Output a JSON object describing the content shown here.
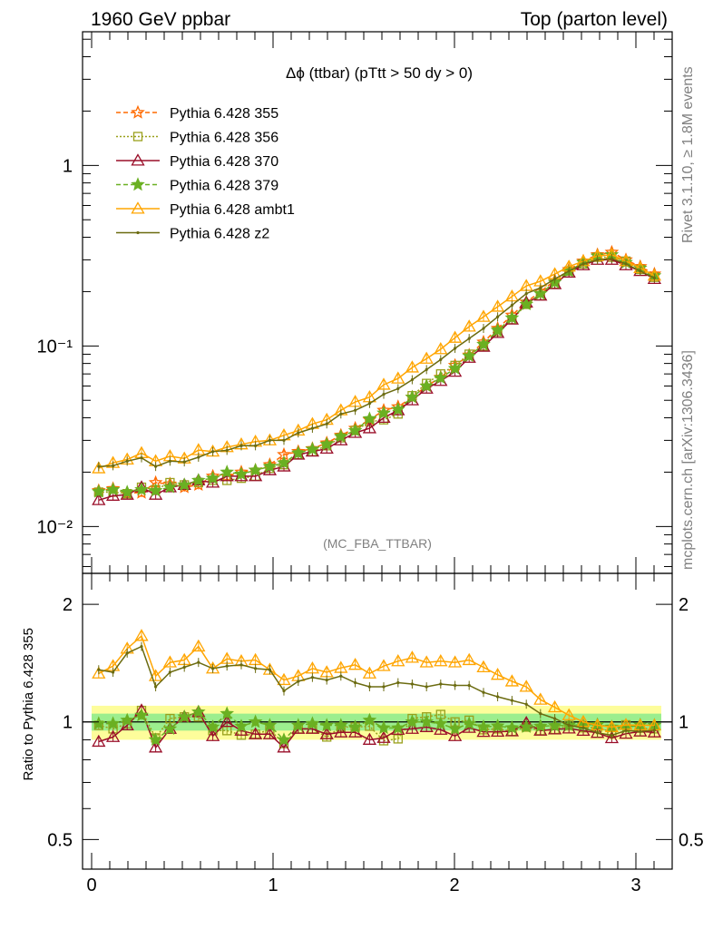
{
  "header": {
    "left": "1960 GeV ppbar",
    "right": "Top (parton level)",
    "side_top": "Rivet 3.1.10, ≥ 1.8M events",
    "side_bottom": "mcplots.cern.ch [arXiv:1306.3436]"
  },
  "chart_data": [
    {
      "type": "line",
      "title": "Δϕ (ttbar) (pTtt > 50 dy > 0)",
      "watermark": "(MC_FBA_TTBAR)",
      "yscale": "log",
      "xlim": [
        -0.05,
        3.2
      ],
      "ylim": [
        0.0055,
        5.5
      ],
      "y_tick_labels": [
        "10⁻²",
        "10⁻¹",
        "1"
      ],
      "legend_position": "top-left",
      "x": [
        0.039,
        0.118,
        0.196,
        0.275,
        0.353,
        0.432,
        0.511,
        0.589,
        0.668,
        0.746,
        0.825,
        0.903,
        0.982,
        1.06,
        1.139,
        1.217,
        1.296,
        1.374,
        1.453,
        1.532,
        1.61,
        1.689,
        1.767,
        1.846,
        1.924,
        2.003,
        2.081,
        2.16,
        2.238,
        2.317,
        2.396,
        2.474,
        2.553,
        2.631,
        2.71,
        2.788,
        2.867,
        2.945,
        3.024,
        3.102
      ],
      "series": [
        {
          "name": "Pythia 6.428 355",
          "color": "#ff6a00",
          "marker": "star-open",
          "dash": "dashed",
          "values": [
            0.0158,
            0.0162,
            0.0153,
            0.0154,
            0.0175,
            0.0172,
            0.0165,
            0.017,
            0.019,
            0.019,
            0.02,
            0.0205,
            0.022,
            0.025,
            0.026,
            0.027,
            0.029,
            0.032,
            0.035,
            0.039,
            0.044,
            0.046,
            0.052,
            0.06,
            0.067,
            0.078,
            0.089,
            0.105,
            0.125,
            0.148,
            0.175,
            0.2,
            0.23,
            0.265,
            0.295,
            0.32,
            0.33,
            0.3,
            0.275,
            0.25
          ]
        },
        {
          "name": "Pythia 6.428 356",
          "color": "#9aa01c",
          "marker": "square-open",
          "dash": "dotted",
          "values": [
            0.0155,
            0.0155,
            0.0152,
            0.0165,
            0.016,
            0.0175,
            0.017,
            0.0175,
            0.018,
            0.018,
            0.0185,
            0.019,
            0.021,
            0.022,
            0.025,
            0.026,
            0.028,
            0.031,
            0.034,
            0.038,
            0.039,
            0.042,
            0.053,
            0.062,
            0.07,
            0.078,
            0.09,
            0.1,
            0.12,
            0.14,
            0.17,
            0.19,
            0.22,
            0.26,
            0.285,
            0.31,
            0.31,
            0.295,
            0.265,
            0.24
          ]
        },
        {
          "name": "Pythia 6.428 370",
          "color": "#9a0e29",
          "marker": "triangle-open",
          "dash": "solid",
          "values": [
            0.014,
            0.0148,
            0.015,
            0.0165,
            0.015,
            0.0165,
            0.017,
            0.018,
            0.0175,
            0.019,
            0.019,
            0.019,
            0.0205,
            0.0215,
            0.025,
            0.026,
            0.027,
            0.03,
            0.033,
            0.035,
            0.04,
            0.044,
            0.05,
            0.058,
            0.064,
            0.072,
            0.086,
            0.099,
            0.118,
            0.14,
            0.174,
            0.19,
            0.22,
            0.255,
            0.28,
            0.3,
            0.3,
            0.28,
            0.26,
            0.235
          ]
        },
        {
          "name": "Pythia 6.428 379",
          "color": "#6ab022",
          "marker": "star-filled",
          "dash": "dashed",
          "values": [
            0.0156,
            0.016,
            0.0155,
            0.016,
            0.0158,
            0.0165,
            0.017,
            0.018,
            0.0185,
            0.02,
            0.0195,
            0.0205,
            0.0215,
            0.0225,
            0.0255,
            0.0268,
            0.0285,
            0.0315,
            0.034,
            0.0395,
            0.0425,
            0.0445,
            0.052,
            0.06,
            0.0665,
            0.075,
            0.088,
            0.102,
            0.122,
            0.143,
            0.17,
            0.195,
            0.225,
            0.26,
            0.29,
            0.315,
            0.32,
            0.29,
            0.27,
            0.245
          ]
        },
        {
          "name": "Pythia 6.428 ambt1",
          "color": "#ffa500",
          "marker": "triangle-open",
          "dash": "solid",
          "values": [
            0.021,
            0.0225,
            0.0235,
            0.0255,
            0.023,
            0.0245,
            0.0238,
            0.0265,
            0.026,
            0.0275,
            0.0285,
            0.0295,
            0.03,
            0.032,
            0.034,
            0.037,
            0.039,
            0.044,
            0.049,
            0.052,
            0.061,
            0.066,
            0.076,
            0.085,
            0.096,
            0.111,
            0.128,
            0.145,
            0.165,
            0.188,
            0.215,
            0.228,
            0.25,
            0.275,
            0.295,
            0.315,
            0.32,
            0.295,
            0.27,
            0.245
          ]
        },
        {
          "name": "Pythia 6.428 z2",
          "color": "#6b6b10",
          "marker": "dot",
          "dash": "solid",
          "values": [
            0.0215,
            0.0217,
            0.023,
            0.024,
            0.0215,
            0.023,
            0.0228,
            0.0242,
            0.026,
            0.0264,
            0.028,
            0.028,
            0.03,
            0.03,
            0.033,
            0.035,
            0.037,
            0.042,
            0.044,
            0.048,
            0.054,
            0.058,
            0.065,
            0.074,
            0.084,
            0.097,
            0.11,
            0.125,
            0.145,
            0.168,
            0.195,
            0.21,
            0.235,
            0.26,
            0.285,
            0.3,
            0.305,
            0.285,
            0.26,
            0.238
          ]
        }
      ]
    },
    {
      "type": "line",
      "ylabel": "Ratio to Pythia 6.428 355",
      "yscale": "log",
      "xlim": [
        -0.05,
        3.2
      ],
      "ylim": [
        0.42,
        2.4
      ],
      "x_ticks": [
        0,
        1,
        2,
        3
      ],
      "y_ticks": [
        0.5,
        1,
        2
      ],
      "reference_band": {
        "inner": [
          0.95,
          1.05
        ],
        "outer": [
          0.9,
          1.1
        ],
        "colors": [
          "#9cee8e",
          "#fdfd9b"
        ]
      },
      "x": [
        0.039,
        0.118,
        0.196,
        0.275,
        0.353,
        0.432,
        0.511,
        0.589,
        0.668,
        0.746,
        0.825,
        0.903,
        0.982,
        1.06,
        1.139,
        1.217,
        1.296,
        1.374,
        1.453,
        1.532,
        1.61,
        1.689,
        1.767,
        1.846,
        1.924,
        2.003,
        2.081,
        2.16,
        2.238,
        2.317,
        2.396,
        2.474,
        2.553,
        2.631,
        2.71,
        2.788,
        2.867,
        2.945,
        3.024,
        3.102
      ],
      "series": [
        {
          "name": "Pythia 6.428 355",
          "values": [
            1,
            1,
            1,
            1,
            1,
            1,
            1,
            1,
            1,
            1,
            1,
            1,
            1,
            1,
            1,
            1,
            1,
            1,
            1,
            1,
            1,
            1,
            1,
            1,
            1,
            1,
            1,
            1,
            1,
            1,
            1,
            1,
            1,
            1,
            1,
            1,
            1,
            1,
            1,
            1
          ]
        },
        {
          "name": "Pythia 6.428 356",
          "values": [
            0.98,
            0.96,
            0.99,
            1.07,
            0.91,
            1.02,
            1.03,
            1.03,
            0.95,
            0.95,
            0.925,
            0.93,
            0.955,
            0.88,
            0.96,
            0.96,
            0.915,
            0.97,
            0.97,
            0.975,
            0.895,
            0.905,
            1.02,
            1.03,
            1.045,
            1.0,
            1.01,
            0.955,
            0.96,
            0.946,
            0.97,
            0.95,
            0.957,
            0.98,
            0.966,
            0.969,
            0.94,
            0.983,
            0.964,
            0.96
          ]
        },
        {
          "name": "Pythia 6.428 370",
          "values": [
            0.89,
            0.915,
            0.98,
            1.07,
            0.86,
            0.96,
            1.03,
            1.06,
            0.92,
            1.0,
            0.95,
            0.93,
            0.93,
            0.86,
            0.96,
            0.96,
            0.93,
            0.94,
            0.94,
            0.9,
            0.91,
            0.955,
            0.96,
            0.97,
            0.955,
            0.92,
            0.966,
            0.943,
            0.944,
            0.946,
            0.994,
            0.95,
            0.957,
            0.962,
            0.949,
            0.9375,
            0.909,
            0.933,
            0.945,
            0.94
          ]
        },
        {
          "name": "Pythia 6.428 379",
          "values": [
            0.99,
            0.99,
            1.01,
            1.04,
            0.9,
            0.96,
            1.03,
            1.06,
            0.97,
            1.05,
            0.975,
            1.0,
            0.98,
            0.9,
            0.98,
            0.99,
            0.98,
            0.98,
            0.97,
            1.01,
            0.965,
            0.965,
            1.0,
            1.0,
            0.99,
            0.96,
            0.99,
            0.971,
            0.976,
            0.966,
            0.971,
            0.975,
            0.978,
            0.981,
            0.983,
            0.984,
            0.97,
            0.967,
            0.982,
            0.98
          ]
        },
        {
          "name": "Pythia 6.428 ambt1",
          "values": [
            1.33,
            1.39,
            1.54,
            1.66,
            1.31,
            1.42,
            1.44,
            1.56,
            1.37,
            1.45,
            1.43,
            1.44,
            1.36,
            1.28,
            1.31,
            1.37,
            1.34,
            1.375,
            1.4,
            1.33,
            1.39,
            1.43,
            1.46,
            1.42,
            1.43,
            1.42,
            1.44,
            1.38,
            1.32,
            1.27,
            1.23,
            1.14,
            1.09,
            1.04,
            1.0,
            0.98,
            0.97,
            0.983,
            0.98,
            0.98
          ]
        },
        {
          "name": "Pythia 6.428 z2",
          "values": [
            1.36,
            1.34,
            1.5,
            1.56,
            1.23,
            1.34,
            1.38,
            1.42,
            1.37,
            1.39,
            1.4,
            1.37,
            1.36,
            1.2,
            1.27,
            1.3,
            1.28,
            1.31,
            1.26,
            1.23,
            1.23,
            1.26,
            1.25,
            1.23,
            1.25,
            1.24,
            1.24,
            1.19,
            1.16,
            1.135,
            1.11,
            1.05,
            1.02,
            0.98,
            0.966,
            0.9375,
            0.924,
            0.95,
            0.945,
            0.952
          ]
        }
      ]
    }
  ]
}
